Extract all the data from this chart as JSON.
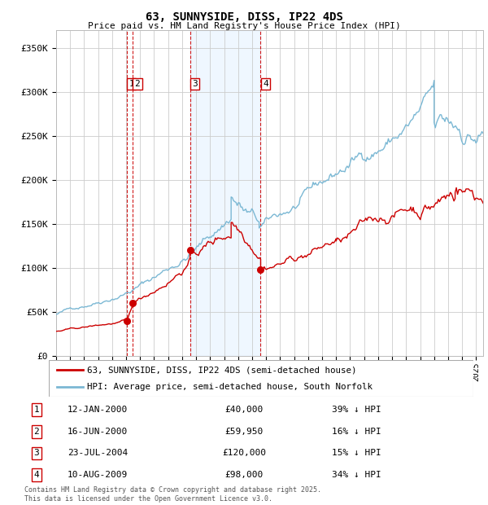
{
  "title": "63, SUNNYSIDE, DISS, IP22 4DS",
  "subtitle": "Price paid vs. HM Land Registry's House Price Index (HPI)",
  "background_color": "#ffffff",
  "plot_bg_color": "#ffffff",
  "grid_color": "#cccccc",
  "hpi_color": "#7bb8d4",
  "price_color": "#cc0000",
  "ylim": [
    0,
    370000
  ],
  "yticks": [
    0,
    50000,
    100000,
    150000,
    200000,
    250000,
    300000,
    350000
  ],
  "ytick_labels": [
    "£0",
    "£50K",
    "£100K",
    "£150K",
    "£200K",
    "£250K",
    "£300K",
    "£350K"
  ],
  "legend_label_price": "63, SUNNYSIDE, DISS, IP22 4DS (semi-detached house)",
  "legend_label_hpi": "HPI: Average price, semi-detached house, South Norfolk",
  "transactions": [
    {
      "num": "1",
      "date": "12-JAN-2000",
      "price": 40000,
      "hpi_pct": "39% ↓ HPI",
      "x_year": 2000.04
    },
    {
      "num": "2",
      "date": "16-JUN-2000",
      "price": 59950,
      "hpi_pct": "16% ↓ HPI",
      "x_year": 2000.46
    },
    {
      "num": "3",
      "date": "23-JUL-2004",
      "price": 120000,
      "hpi_pct": "15% ↓ HPI",
      "x_year": 2004.56
    },
    {
      "num": "4",
      "date": "10-AUG-2009",
      "price": 98000,
      "hpi_pct": "34% ↓ HPI",
      "x_year": 2009.61
    }
  ],
  "vline_color": "#cc0000",
  "shade_color": "#ddeeff",
  "shade_alpha": 0.45,
  "shade_x1": 2004.56,
  "shade_x2": 2009.61,
  "footnote": "Contains HM Land Registry data © Crown copyright and database right 2025.\nThis data is licensed under the Open Government Licence v3.0.",
  "xmin": 1995.0,
  "xmax": 2025.5
}
